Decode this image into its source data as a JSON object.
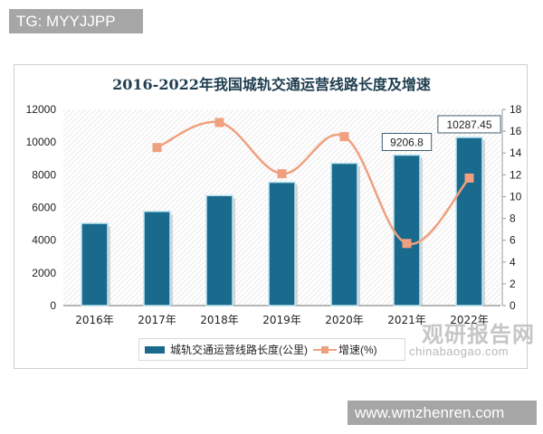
{
  "watermarks": {
    "top_tag": "TG: MYYJJPP",
    "bottom_tag": "www.wmzhenren.com",
    "logo_cn": "观研报告网",
    "logo_en": "chinabaogao.com"
  },
  "chart_data": {
    "type": "bar+line",
    "title": "2016-2022年我国城轨交通运营线路长度及增速",
    "categories": [
      "2016年",
      "2017年",
      "2018年",
      "2019年",
      "2020年",
      "2021年",
      "2022年"
    ],
    "series": [
      {
        "name": "城轨交通运营线路长度(公里)",
        "type": "bar",
        "axis": "left",
        "color": "#1a6a8e",
        "values": [
          5033,
          5761,
          6736,
          7545,
          8708,
          9206.8,
          10287.45
        ],
        "data_labels": [
          null,
          null,
          null,
          null,
          null,
          "9206.8",
          "10287.45"
        ]
      },
      {
        "name": "增速(%)",
        "type": "line",
        "axis": "right",
        "color": "#f0a07e",
        "values": [
          null,
          14.5,
          16.8,
          12.1,
          15.5,
          5.7,
          11.7
        ]
      }
    ],
    "left_axis": {
      "ylim": [
        0,
        12000
      ],
      "ticks": [
        "0",
        "2000",
        "4000",
        "6000",
        "8000",
        "10000",
        "12000"
      ]
    },
    "right_axis": {
      "ylim": [
        0,
        18
      ],
      "ticks": [
        "0",
        "2",
        "4",
        "6",
        "8",
        "10",
        "12",
        "14",
        "16",
        "18"
      ]
    },
    "legend_position": "bottom",
    "grid": false
  }
}
